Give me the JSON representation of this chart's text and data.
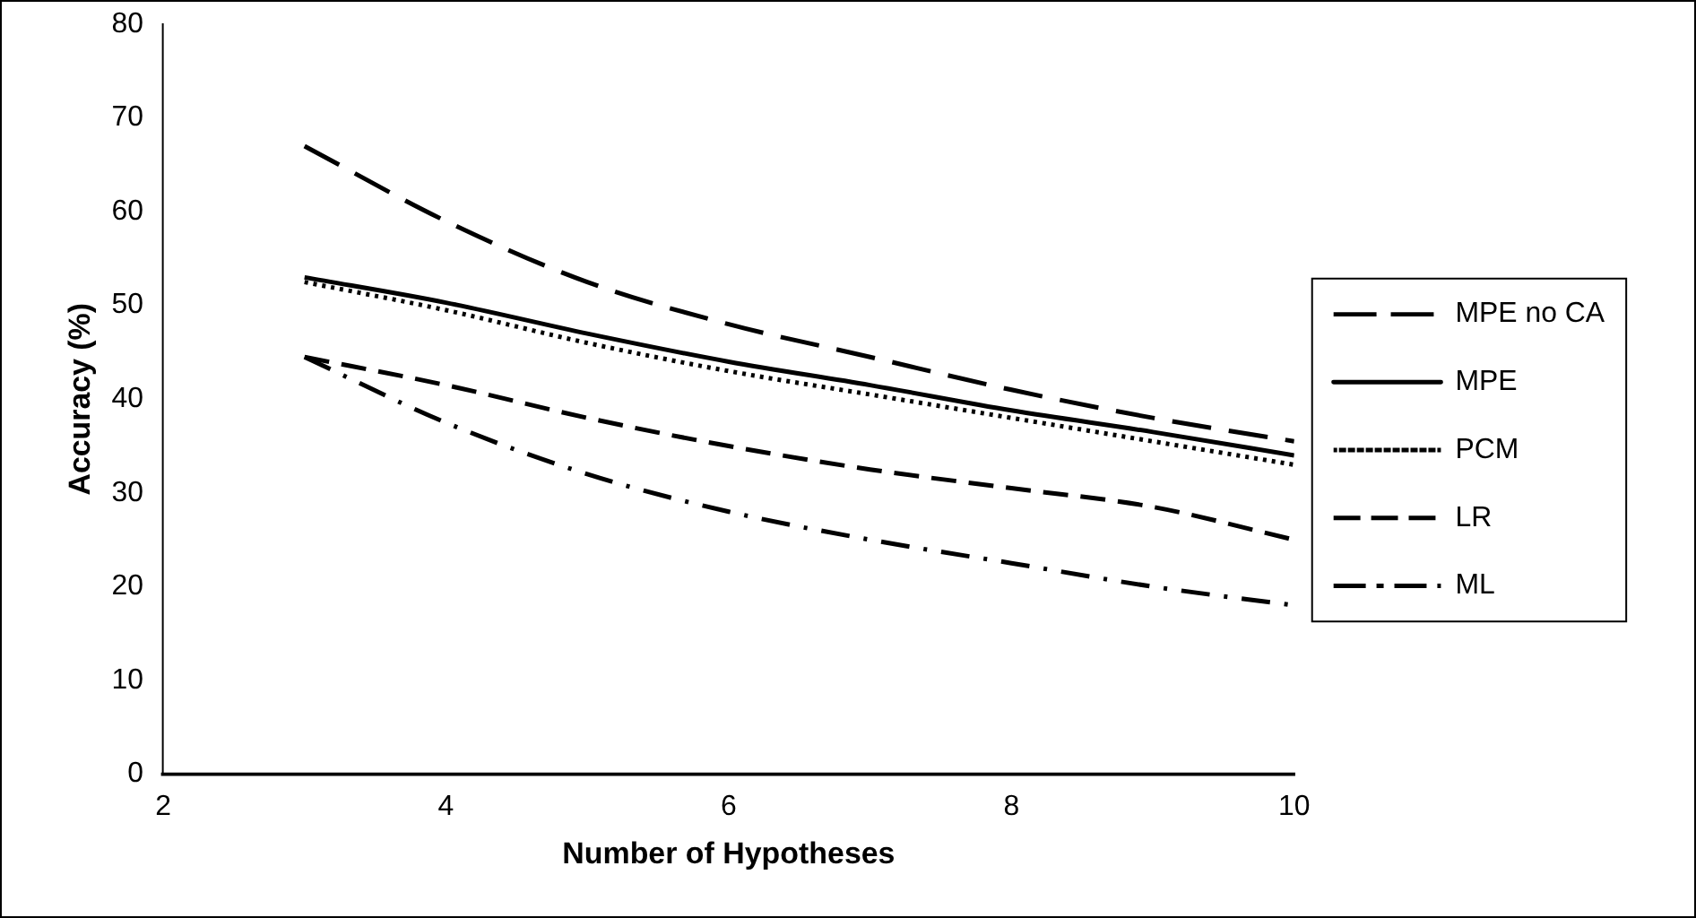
{
  "chart_data": {
    "type": "line",
    "xlabel": "Number of Hypotheses",
    "ylabel": "Accuracy (%)",
    "x": [
      3,
      4,
      5,
      6,
      7,
      8,
      9,
      10
    ],
    "xlim": [
      2,
      10
    ],
    "xticks": [
      2,
      4,
      6,
      8,
      10
    ],
    "ylim": [
      0,
      80
    ],
    "yticks": [
      0,
      10,
      20,
      30,
      40,
      50,
      60,
      70,
      80
    ],
    "grid": false,
    "legend": "right",
    "marker": "none",
    "series": [
      {
        "name": "MPE no CA",
        "color": "#000000",
        "line_style": "dashed",
        "values": [
          67,
          59,
          52.5,
          48,
          44.5,
          41,
          38,
          35.5
        ]
      },
      {
        "name": "MPE",
        "color": "#000000",
        "line_style": "solid",
        "values": [
          53,
          50.3,
          47,
          44,
          41.5,
          38.8,
          36.5,
          34
        ]
      },
      {
        "name": "PCM",
        "color": "#000000",
        "line_style": "dotted",
        "values": [
          52.5,
          49.5,
          46,
          43,
          40.5,
          38,
          35.5,
          33
        ]
      },
      {
        "name": "LR",
        "color": "#000000",
        "line_style": "dashed",
        "values": [
          44.5,
          41.5,
          38,
          35,
          32.5,
          30.5,
          28.5,
          25
        ]
      },
      {
        "name": "ML",
        "color": "#000000",
        "line_style": "dashdot",
        "values": [
          44.5,
          37.5,
          32,
          28,
          25,
          22.5,
          20,
          18
        ]
      }
    ]
  }
}
